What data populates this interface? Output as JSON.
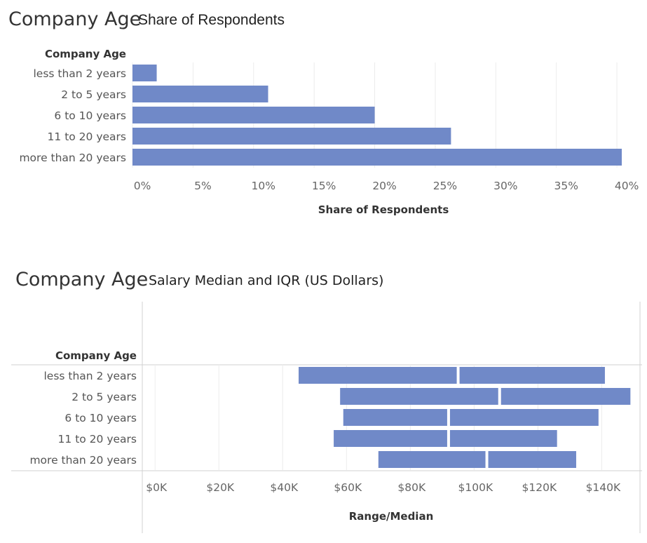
{
  "chart_data": [
    {
      "type": "bar",
      "orientation": "horizontal",
      "title": "Company Age",
      "subtitle": "Share of Respondents",
      "category_header": "Company Age",
      "categories": [
        "less than 2 years",
        "2 to 5 years",
        "6 to 10 years",
        "11 to 20 years",
        "more than 20 years"
      ],
      "values": [
        2.0,
        11.2,
        20.0,
        26.3,
        40.4
      ],
      "unit": "%",
      "xlabel": "Share of Respondents",
      "ticks": [
        "0%",
        "5%",
        "10%",
        "15%",
        "20%",
        "25%",
        "30%",
        "35%",
        "40%"
      ],
      "xlim": [
        0,
        41.5
      ],
      "grid": true,
      "colors": {
        "bar": "#7089c8",
        "grid": "#ececec"
      }
    },
    {
      "type": "bar",
      "orientation": "horizontal",
      "style": "range-median",
      "title": "Company Age",
      "subtitle": "Salary Median and IQR (US Dollars)",
      "category_header": "Company Age",
      "categories": [
        "less than 2 years",
        "2 to 5 years",
        "6 to 10 years",
        "11 to 20 years",
        "more than 20 years"
      ],
      "low": [
        45000,
        58000,
        59000,
        56000,
        70000
      ],
      "median": [
        95000,
        108000,
        92000,
        92000,
        104000
      ],
      "high": [
        141000,
        149000,
        139000,
        126000,
        132000
      ],
      "xlabel": "Range/Median",
      "ticks": [
        "$0K",
        "$20K",
        "$40K",
        "$60K",
        "$80K",
        "$100K",
        "$120K",
        "$140K"
      ],
      "xlim": [
        -4000,
        152000
      ],
      "grid": true,
      "colors": {
        "bar": "#7089c8",
        "grid": "#ececec",
        "rule": "#d0d0d0"
      }
    }
  ]
}
